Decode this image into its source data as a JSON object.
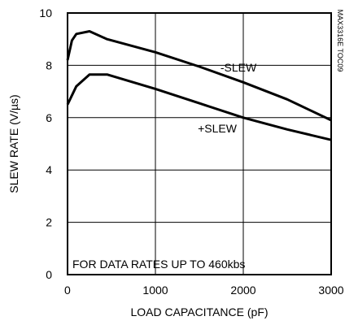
{
  "chart_data": {
    "type": "line",
    "xlabel": "LOAD CAPACITANCE (pF)",
    "ylabel": "SLEW RATE (V/µs)",
    "xlim": [
      0,
      3000
    ],
    "ylim": [
      0,
      10
    ],
    "x_ticks": [
      "0",
      "1000",
      "2000",
      "3000"
    ],
    "y_ticks": [
      "0",
      "2",
      "4",
      "6",
      "8",
      "10"
    ],
    "grid": true,
    "series": [
      {
        "name": "-SLEW",
        "x": [
          0,
          50,
          100,
          250,
          450,
          1000,
          1500,
          2000,
          2500,
          3000
        ],
        "y": [
          8.2,
          8.95,
          9.2,
          9.3,
          9.0,
          8.5,
          7.95,
          7.35,
          6.7,
          5.9
        ]
      },
      {
        "name": "+SLEW",
        "x": [
          0,
          100,
          250,
          450,
          1000,
          1500,
          2000,
          2500,
          3000
        ],
        "y": [
          6.5,
          7.2,
          7.65,
          7.65,
          7.1,
          6.55,
          6.0,
          5.55,
          5.15
        ]
      }
    ],
    "annotations": [
      "FOR DATA RATES UP TO 460kbs"
    ],
    "side_label": "MAX3316E TOC09"
  }
}
